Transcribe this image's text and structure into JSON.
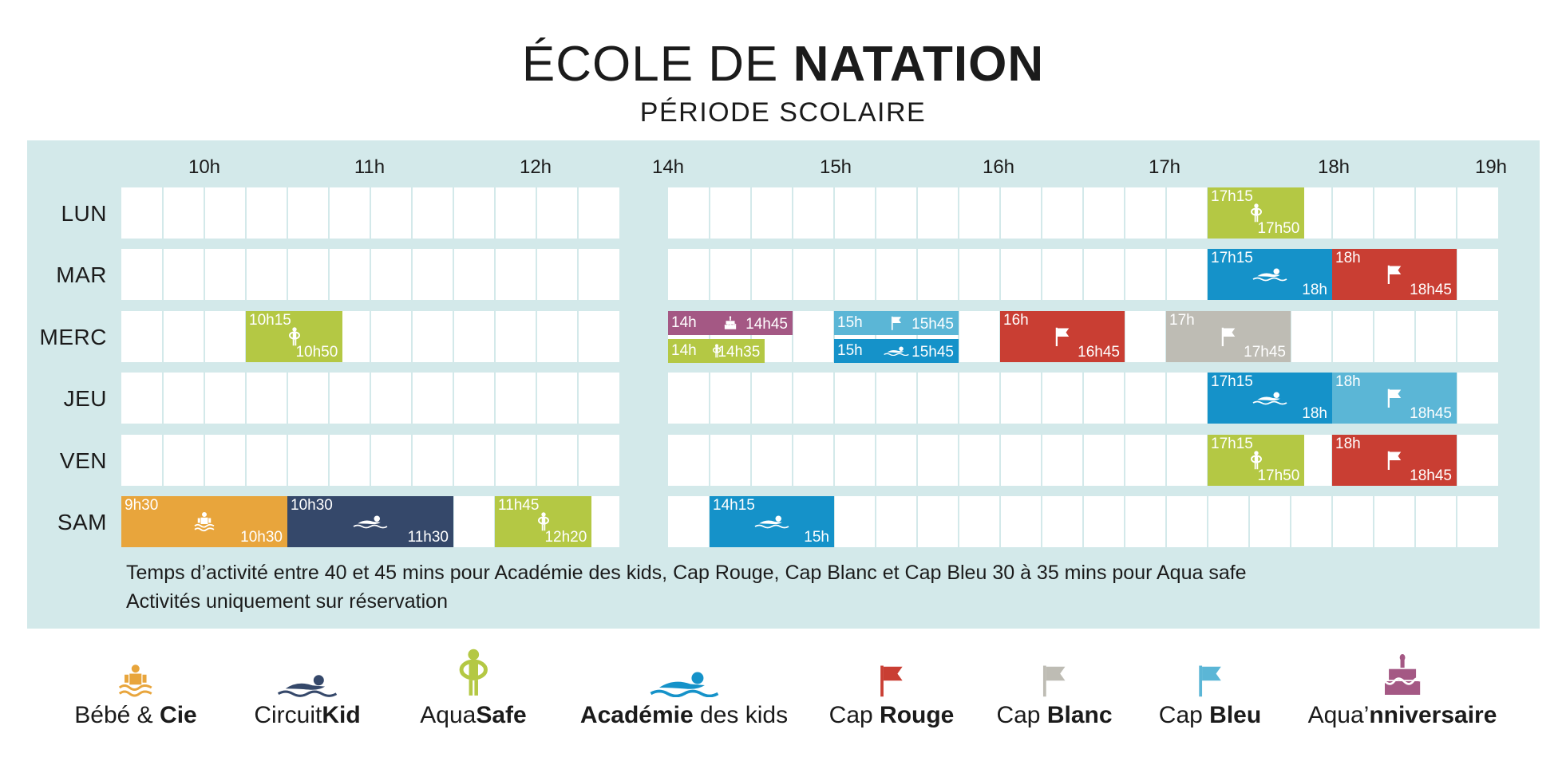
{
  "header": {
    "title_light": "ÉCOLE DE",
    "title_bold": "NATATION",
    "subtitle": "PÉRIODE SCOLAIRE"
  },
  "colors": {
    "panel": "#d3e9ea",
    "bebe": "#e8a53c",
    "circuit": "#35486a",
    "aquasafe": "#b4c844",
    "academie": "#1592c9",
    "cap_rouge": "#c93e33",
    "cap_blanc": "#bebcb4",
    "cap_bleu": "#5bb6d6",
    "aquanniv": "#a45884"
  },
  "timeline": {
    "hours": [
      "10h",
      "11h",
      "12h",
      "14h",
      "15h",
      "16h",
      "17h",
      "18h",
      "19h"
    ],
    "days": [
      "LUN",
      "MAR",
      "MERC",
      "JEU",
      "VEN",
      "SAM"
    ]
  },
  "sessions": [
    {
      "day": "LUN",
      "activity": "AquaSafe",
      "start": "17h15",
      "end": "17h50"
    },
    {
      "day": "MAR",
      "activity": "Académie des kids",
      "start": "17h15",
      "end": "18h"
    },
    {
      "day": "MAR",
      "activity": "Cap Rouge",
      "start": "18h",
      "end": "18h45"
    },
    {
      "day": "MERC",
      "activity": "AquaSafe",
      "start": "10h15",
      "end": "10h50"
    },
    {
      "day": "MERC",
      "activity": "Aqua'nniversaire",
      "start": "14h",
      "end": "14h45"
    },
    {
      "day": "MERC",
      "activity": "AquaSafe",
      "start": "14h",
      "end": "14h35"
    },
    {
      "day": "MERC",
      "activity": "Cap Bleu",
      "start": "15h",
      "end": "15h45"
    },
    {
      "day": "MERC",
      "activity": "Académie des kids",
      "start": "15h",
      "end": "15h45"
    },
    {
      "day": "MERC",
      "activity": "Cap Rouge",
      "start": "16h",
      "end": "16h45"
    },
    {
      "day": "MERC",
      "activity": "Cap Blanc",
      "start": "17h",
      "end": "17h45"
    },
    {
      "day": "JEU",
      "activity": "Académie des kids",
      "start": "17h15",
      "end": "18h"
    },
    {
      "day": "JEU",
      "activity": "Cap Bleu",
      "start": "18h",
      "end": "18h45"
    },
    {
      "day": "VEN",
      "activity": "AquaSafe",
      "start": "17h15",
      "end": "17h50"
    },
    {
      "day": "VEN",
      "activity": "Cap Rouge",
      "start": "18h",
      "end": "18h45"
    },
    {
      "day": "SAM",
      "activity": "Bébé & Cie",
      "start": "9h30",
      "end": "10h30"
    },
    {
      "day": "SAM",
      "activity": "CircuitKid",
      "start": "10h30",
      "end": "11h30"
    },
    {
      "day": "SAM",
      "activity": "AquaSafe",
      "start": "11h45",
      "end": "12h20"
    },
    {
      "day": "SAM",
      "activity": "Académie des kids",
      "start": "14h15",
      "end": "15h"
    }
  ],
  "notes": {
    "line1": "Temps d’activité entre 40 et 45 mins pour Académie des kids, Cap Rouge, Cap Blanc et Cap Bleu 30 à 35 mins pour Aqua safe",
    "line2": "Activités uniquement sur réservation"
  },
  "legend": [
    {
      "light": "Bébé & ",
      "bold": "Cie",
      "icon": "baby-swim-icon"
    },
    {
      "light": "Circuit",
      "bold": "Kid",
      "icon": "swimmer-dark-icon"
    },
    {
      "light": "Aqua",
      "bold": "Safe",
      "icon": "lifebuoy-child-icon"
    },
    {
      "light": " des kids",
      "bold": "Académie",
      "icon": "swimmer-blue-icon"
    },
    {
      "light": "Cap ",
      "bold": "Rouge",
      "icon": "red-flag-icon"
    },
    {
      "light": "Cap ",
      "bold": "Blanc",
      "icon": "white-flag-icon"
    },
    {
      "light": "Cap ",
      "bold": "Bleu",
      "icon": "blue-flag-icon"
    },
    {
      "light": "Aqua’",
      "bold": "nniversaire",
      "icon": "birthday-cake-icon"
    }
  ]
}
